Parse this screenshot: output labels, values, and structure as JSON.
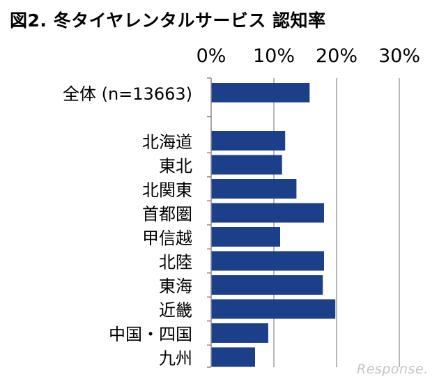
{
  "title": "図2. 冬タイヤレンタルサービス 認知率",
  "watermark": "Response.",
  "chart_data": {
    "type": "bar",
    "orientation": "horizontal",
    "title": "図2. 冬タイヤレンタルサービス 認知率",
    "xlabel": "",
    "ylabel": "",
    "xlim": [
      0,
      30
    ],
    "xticks": [
      "0%",
      "10%",
      "20%",
      "30%"
    ],
    "x_axis_position": "top",
    "grid": true,
    "bar_color": "#1c3f8a",
    "categories": [
      "全体 (n=13663)",
      "北海道",
      "東北",
      "北関東",
      "首都圏",
      "甲信越",
      "北陸",
      "東海",
      "近畿",
      "中国・四国",
      "九州"
    ],
    "values": [
      15.7,
      11.8,
      11.3,
      13.6,
      18.0,
      11.0,
      18.0,
      17.8,
      19.8,
      9.1,
      7.0
    ]
  }
}
